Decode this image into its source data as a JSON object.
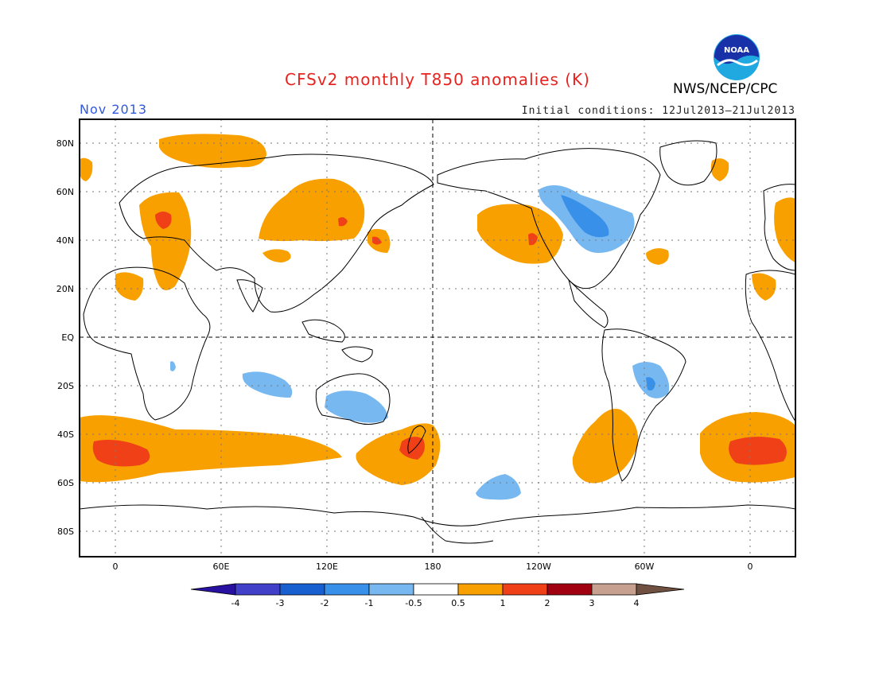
{
  "title": "CFSv2 monthly T850 anomalies (K)",
  "organization": "NWS/NCEP/CPC",
  "logo_text": "NOAA",
  "period": "Nov 2013",
  "initial_conditions": "Initial conditions: 12Jul2013–21Jul2013",
  "colors": {
    "title": "#e8231f",
    "period": "#3058e0",
    "warm_05_1": "#f8a000",
    "warm_1_2": "#f04018",
    "warm_2_3": "#a00010",
    "warm_3_4": "#c8a090",
    "warm_gt4": "#705040",
    "cool_05_1": "#78b8f0",
    "cool_1_2": "#3890e8",
    "cool_2_3": "#1860d0",
    "cool_3_4": "#4040c8",
    "cool_lt4": "#2810a0"
  },
  "axes": {
    "lat_labels": [
      "80N",
      "60N",
      "40N",
      "20N",
      "EQ",
      "20S",
      "40S",
      "60S",
      "80S"
    ],
    "lon_labels": [
      "0",
      "60E",
      "120E",
      "180",
      "120W",
      "60W",
      "0"
    ]
  },
  "colorbar": {
    "labels": [
      "-4",
      "-3",
      "-2",
      "-1",
      "-0.5",
      "0.5",
      "1",
      "2",
      "3",
      "4"
    ]
  }
}
